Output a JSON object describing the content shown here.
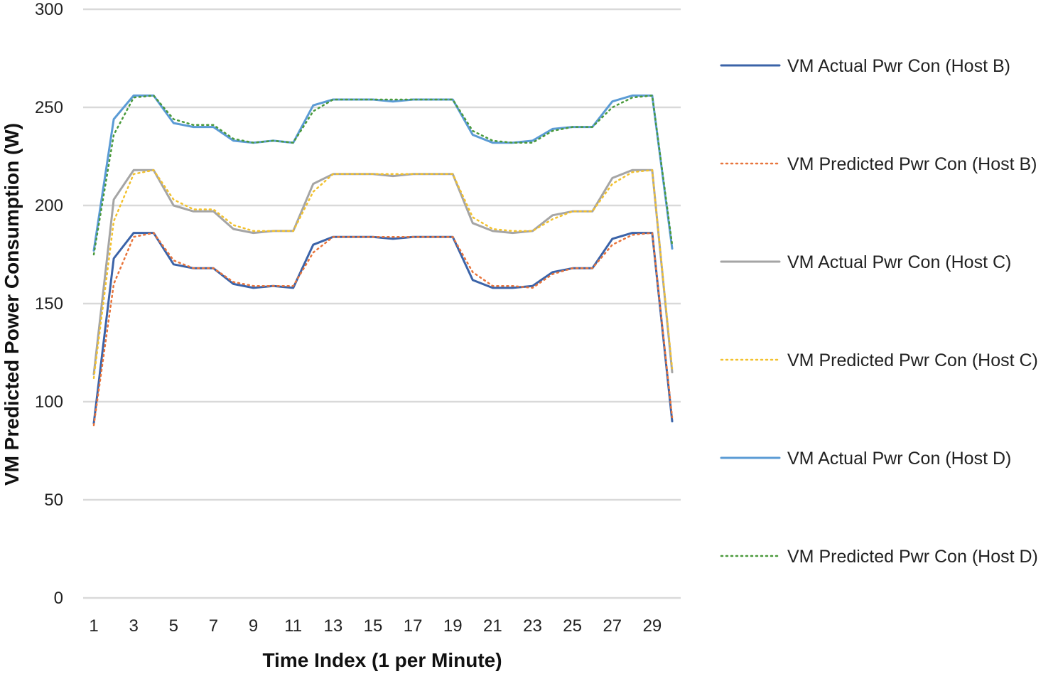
{
  "chart_data": {
    "type": "line",
    "title": "",
    "xlabel": "Time Index (1 per Minute)",
    "ylabel": "VM Predicted Power Consumption (W)",
    "ylim": [
      0,
      300
    ],
    "yticks": [
      0,
      50,
      100,
      150,
      200,
      250,
      300
    ],
    "xticks": [
      1,
      3,
      5,
      7,
      9,
      11,
      13,
      15,
      17,
      19,
      21,
      23,
      25,
      27,
      29
    ],
    "x": [
      1,
      2,
      3,
      4,
      5,
      6,
      7,
      8,
      9,
      10,
      11,
      12,
      13,
      14,
      15,
      16,
      17,
      18,
      19,
      20,
      21,
      22,
      23,
      24,
      25,
      26,
      27,
      28,
      29,
      30
    ],
    "grid": "horizontal",
    "legend_position": "right",
    "series": [
      {
        "name": "VM Actual Pwr Con (Host B)",
        "color": "#3b63a8",
        "style": "solid",
        "values": [
          89,
          173,
          186,
          186,
          170,
          168,
          168,
          160,
          158,
          159,
          158,
          180,
          184,
          184,
          184,
          183,
          184,
          184,
          184,
          162,
          158,
          158,
          159,
          166,
          168,
          168,
          183,
          186,
          186,
          90
        ]
      },
      {
        "name": "VM Predicted Pwr Con (Host B)",
        "color": "#e8743b",
        "style": "dotted",
        "values": [
          88,
          160,
          184,
          186,
          172,
          168,
          168,
          161,
          159,
          159,
          159,
          176,
          184,
          184,
          184,
          184,
          184,
          184,
          184,
          166,
          159,
          159,
          158,
          165,
          168,
          168,
          180,
          185,
          186,
          92
        ]
      },
      {
        "name": "VM Actual Pwr Con (Host C)",
        "color": "#a5a5a5",
        "style": "solid",
        "values": [
          114,
          203,
          218,
          218,
          200,
          197,
          197,
          188,
          186,
          187,
          187,
          211,
          216,
          216,
          216,
          215,
          216,
          216,
          216,
          191,
          187,
          186,
          187,
          195,
          197,
          197,
          214,
          218,
          218,
          115
        ]
      },
      {
        "name": "VM Predicted Pwr Con (Host C)",
        "color": "#f2c12e",
        "style": "dotted",
        "values": [
          112,
          192,
          216,
          218,
          203,
          198,
          198,
          190,
          187,
          187,
          187,
          207,
          216,
          216,
          216,
          216,
          216,
          216,
          216,
          194,
          188,
          187,
          187,
          193,
          197,
          197,
          211,
          217,
          218,
          117
        ]
      },
      {
        "name": "VM Actual Pwr Con (Host D)",
        "color": "#5b9bd5",
        "style": "solid",
        "values": [
          177,
          244,
          256,
          256,
          242,
          240,
          240,
          233,
          232,
          233,
          232,
          251,
          254,
          254,
          254,
          253,
          254,
          254,
          254,
          236,
          232,
          232,
          233,
          239,
          240,
          240,
          253,
          256,
          256,
          178
        ]
      },
      {
        "name": "VM Predicted Pwr Con (Host D)",
        "color": "#4a9a3c",
        "style": "dotted",
        "values": [
          175,
          236,
          255,
          256,
          244,
          241,
          241,
          234,
          232,
          233,
          232,
          248,
          254,
          254,
          254,
          254,
          254,
          254,
          254,
          238,
          233,
          232,
          232,
          238,
          240,
          240,
          250,
          255,
          256,
          180
        ]
      }
    ]
  }
}
